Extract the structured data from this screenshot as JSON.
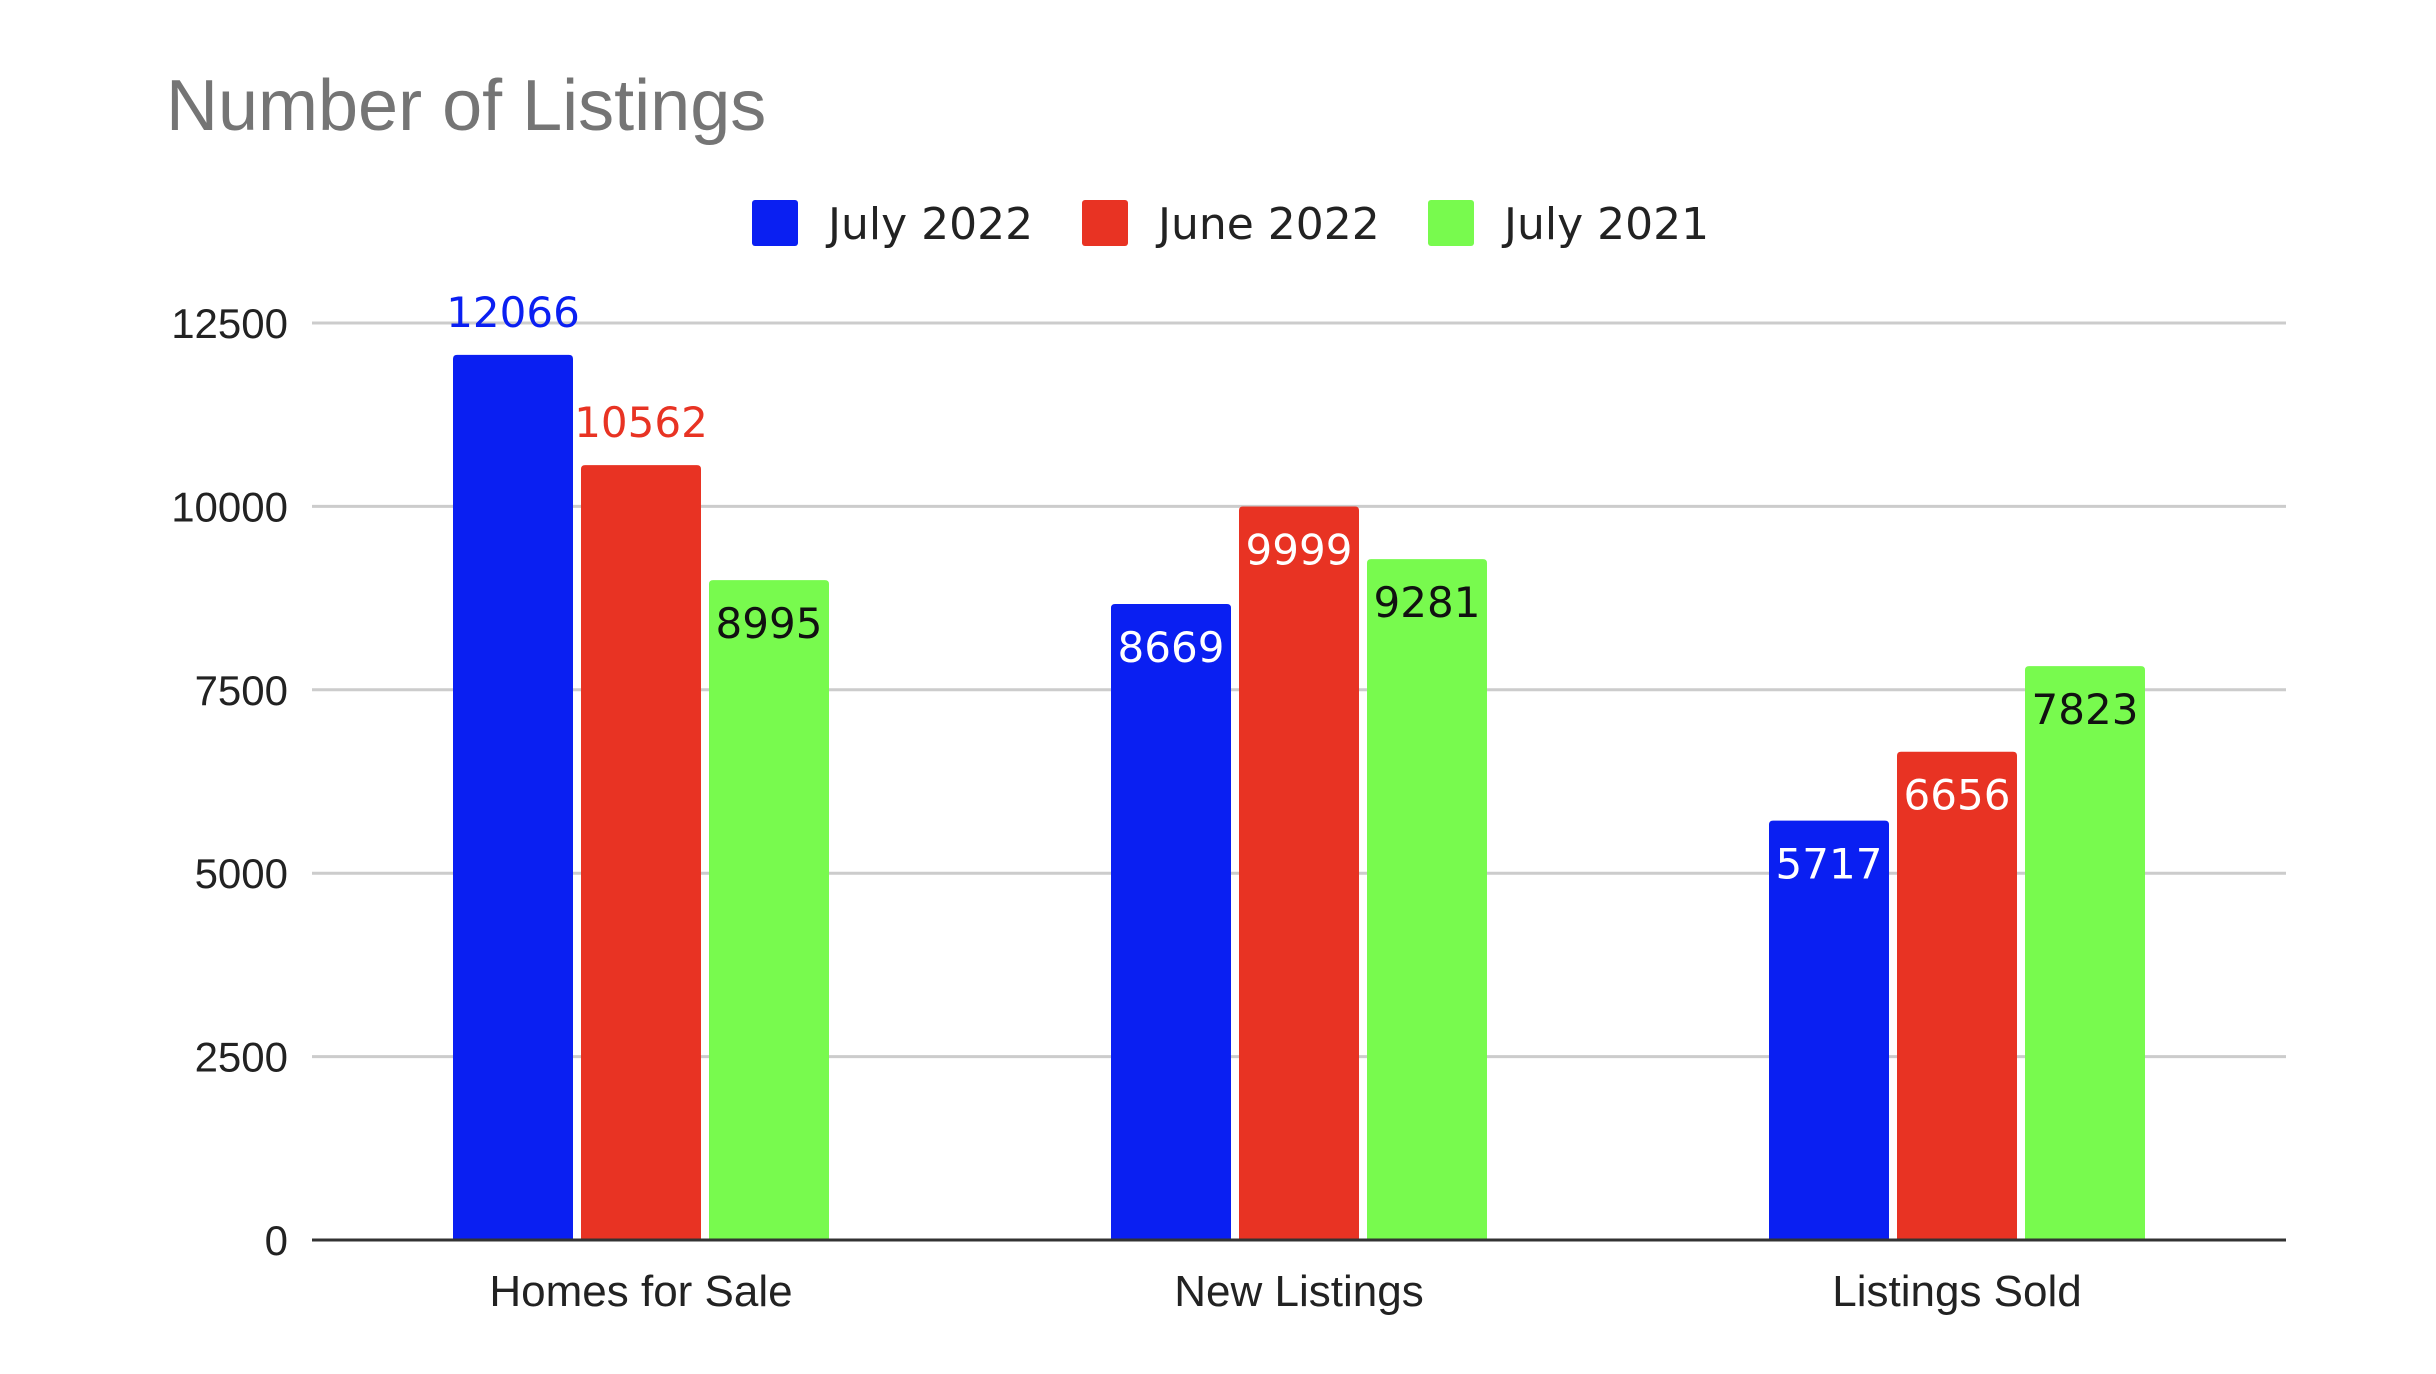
{
  "chart_data": {
    "type": "bar",
    "title": "Number of Listings",
    "xlabel": "",
    "ylabel": "",
    "categories": [
      "Homes for Sale",
      "New Listings",
      "Listings Sold"
    ],
    "series": [
      {
        "name": "July 2022",
        "color": "#0a1ff2",
        "values": [
          12066,
          8669,
          5717
        ]
      },
      {
        "name": "June 2022",
        "color": "#e83323",
        "values": [
          10562,
          9999,
          6656
        ]
      },
      {
        "name": "July 2021",
        "color": "#78fa4e",
        "values": [
          8995,
          9281,
          7823
        ]
      }
    ],
    "ylim": [
      0,
      12500
    ],
    "yticks": [
      0,
      2500,
      5000,
      7500,
      10000,
      12500
    ],
    "grid": true,
    "legend_position": "top-center",
    "data_labels": true
  }
}
